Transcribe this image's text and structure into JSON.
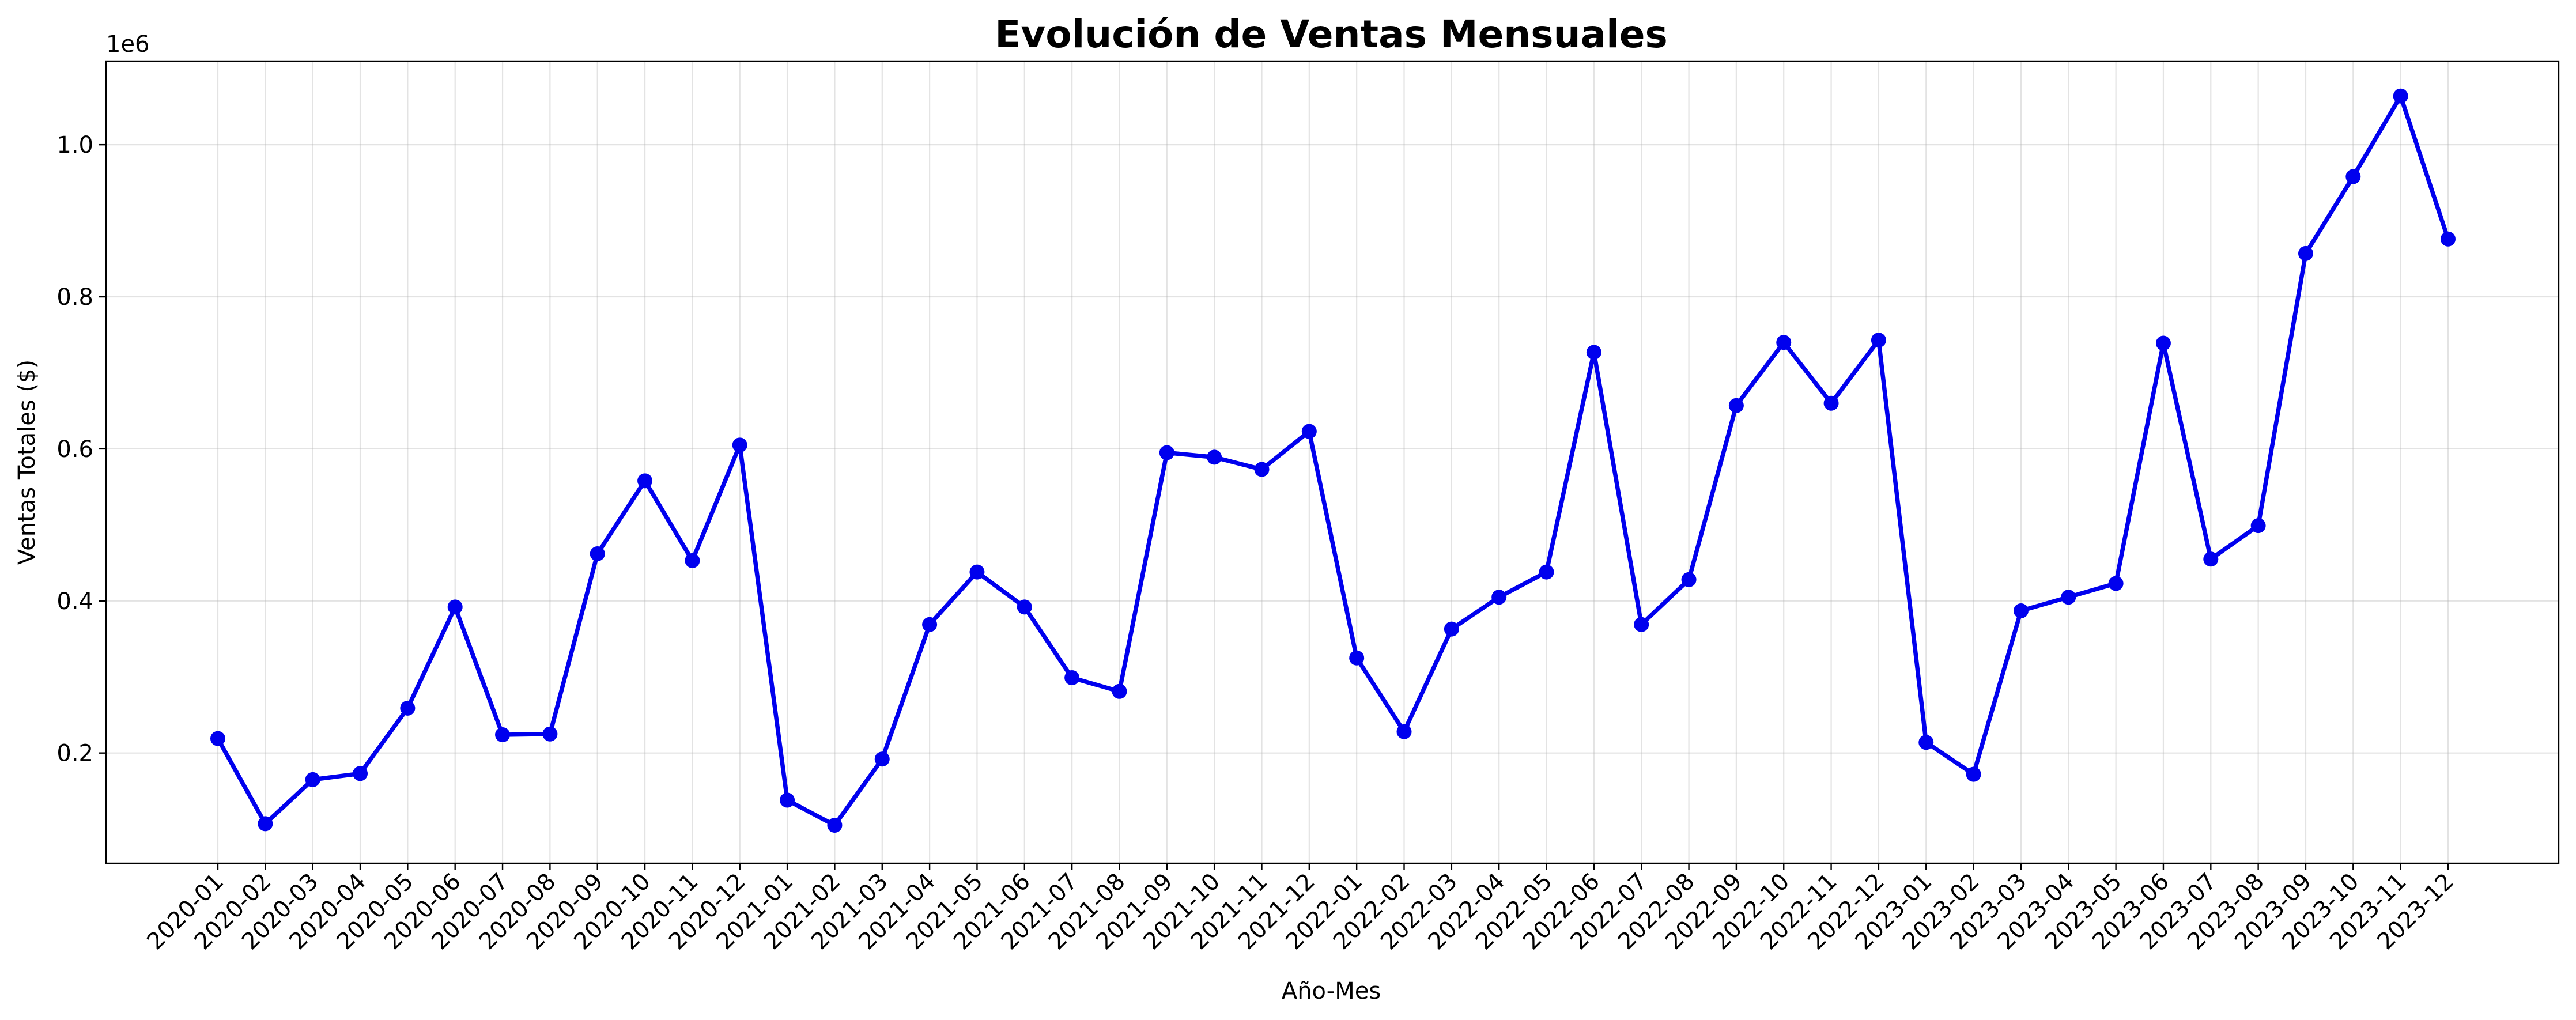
{
  "chart_data": {
    "type": "line",
    "title": "Evolución de Ventas Mensuales",
    "xlabel": "Año-Mes",
    "ylabel": "Ventas Totales ($)",
    "y_offset_label": "1e6",
    "y_ticks": [
      0.2,
      0.4,
      0.6,
      0.8,
      1.0
    ],
    "y_tick_labels": [
      "0.2",
      "0.4",
      "0.6",
      "0.8",
      "1.0"
    ],
    "ylim": [
      0.055,
      1.11
    ],
    "grid": true,
    "color": "#0000ee",
    "categories": [
      "2020-01",
      "2020-02",
      "2020-03",
      "2020-04",
      "2020-05",
      "2020-06",
      "2020-07",
      "2020-08",
      "2020-09",
      "2020-10",
      "2020-11",
      "2020-12",
      "2021-01",
      "2021-02",
      "2021-03",
      "2021-04",
      "2021-05",
      "2021-06",
      "2021-07",
      "2021-08",
      "2021-09",
      "2021-10",
      "2021-11",
      "2021-12",
      "2022-01",
      "2022-02",
      "2022-03",
      "2022-04",
      "2022-05",
      "2022-06",
      "2022-07",
      "2022-08",
      "2022-09",
      "2022-10",
      "2022-11",
      "2022-12",
      "2023-01",
      "2023-02",
      "2023-03",
      "2023-04",
      "2023-05",
      "2023-06",
      "2023-07",
      "2023-08",
      "2023-09",
      "2023-10",
      "2023-11",
      "2023-12"
    ],
    "values": [
      0.219,
      0.107,
      0.165,
      0.173,
      0.259,
      0.392,
      0.224,
      0.225,
      0.462,
      0.558,
      0.453,
      0.605,
      0.138,
      0.105,
      0.192,
      0.369,
      0.438,
      0.392,
      0.299,
      0.281,
      0.595,
      0.589,
      0.573,
      0.623,
      0.325,
      0.228,
      0.363,
      0.405,
      0.438,
      0.727,
      0.369,
      0.428,
      0.657,
      0.74,
      0.66,
      0.743,
      0.214,
      0.172,
      0.387,
      0.405,
      0.423,
      0.739,
      0.455,
      0.499,
      0.857,
      0.958,
      1.064,
      0.876
    ]
  }
}
